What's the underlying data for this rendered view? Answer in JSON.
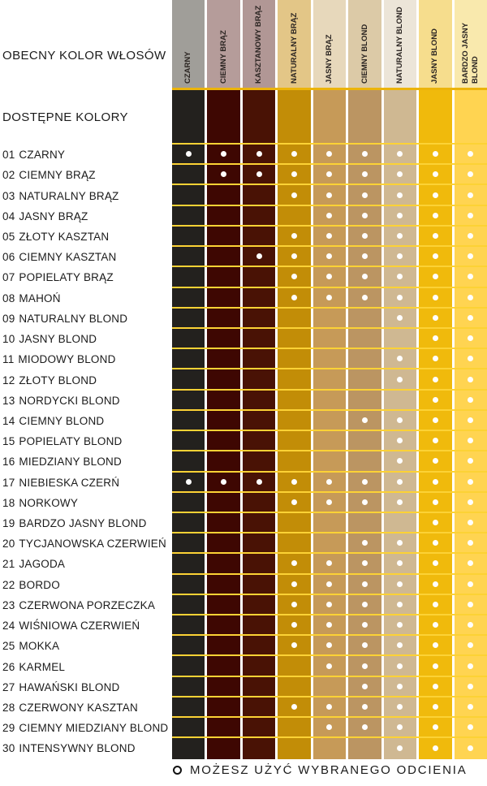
{
  "chart_data": {
    "type": "table",
    "title": "OBECNY KOLOR WŁOSÓW / DOSTĘPNE KOLORY",
    "left_header": "OBECNY KOLOR WŁOSÓW",
    "left_subheader": "DOSTĘPNE KOLORY",
    "legend_marker": "open-circle",
    "legend_text": "MOŻESZ UŻYĆ WYBRANEGO ODCIENIA",
    "columns": [
      {
        "label": "CZARNY",
        "header_color": "#a09e99",
        "cell_color": "#23211e"
      },
      {
        "label": "CIEMNY BRĄZ",
        "header_color": "#b59c9a",
        "cell_color": "#3e0702"
      },
      {
        "label": "KASZTANOWY BRĄZ",
        "header_color": "#b19795",
        "cell_color": "#491205"
      },
      {
        "label": "NATURALNY BRĄZ",
        "header_color": "#e3c687",
        "cell_color": "#c28d07"
      },
      {
        "label": "JASNY BRĄZ",
        "header_color": "#e7d8bb",
        "cell_color": "#c69a58"
      },
      {
        "label": "CIEMNY BLOND",
        "header_color": "#dccaa7",
        "cell_color": "#bb9562"
      },
      {
        "label": "NATURALNY BLOND",
        "header_color": "#ece5d8",
        "cell_color": "#cfb892"
      },
      {
        "label": "JASNY BLOND",
        "header_color": "#f6dd8d",
        "cell_color": "#f0ba0c"
      },
      {
        "label": "BARDZO JASNY BLOND",
        "header_color": "#f9e9ad",
        "cell_color": "#ffd451"
      }
    ],
    "rows": [
      {
        "num": "01",
        "name": "CZARNY",
        "available": [
          1,
          1,
          1,
          1,
          1,
          1,
          1,
          1,
          1
        ]
      },
      {
        "num": "02",
        "name": "CIEMNY BRĄZ",
        "available": [
          0,
          1,
          1,
          1,
          1,
          1,
          1,
          1,
          1
        ]
      },
      {
        "num": "03",
        "name": "NATURALNY BRĄZ",
        "available": [
          0,
          0,
          0,
          1,
          1,
          1,
          1,
          1,
          1
        ]
      },
      {
        "num": "04",
        "name": "JASNY BRĄZ",
        "available": [
          0,
          0,
          0,
          0,
          1,
          1,
          1,
          1,
          1
        ]
      },
      {
        "num": "05",
        "name": "ZŁOTY KASZTAN",
        "available": [
          0,
          0,
          0,
          1,
          1,
          1,
          1,
          1,
          1
        ]
      },
      {
        "num": "06",
        "name": "CIEMNY KASZTAN",
        "available": [
          0,
          0,
          1,
          1,
          1,
          1,
          1,
          1,
          1
        ]
      },
      {
        "num": "07",
        "name": "POPIELATY BRĄZ",
        "available": [
          0,
          0,
          0,
          1,
          1,
          1,
          1,
          1,
          1
        ]
      },
      {
        "num": "08",
        "name": "MAHOŃ",
        "available": [
          0,
          0,
          0,
          1,
          1,
          1,
          1,
          1,
          1
        ]
      },
      {
        "num": "09",
        "name": "NATURALNY BLOND",
        "available": [
          0,
          0,
          0,
          0,
          0,
          0,
          1,
          1,
          1
        ]
      },
      {
        "num": "10",
        "name": "JASNY BLOND",
        "available": [
          0,
          0,
          0,
          0,
          0,
          0,
          0,
          1,
          1
        ]
      },
      {
        "num": "11",
        "name": "MIODOWY BLOND",
        "available": [
          0,
          0,
          0,
          0,
          0,
          0,
          1,
          1,
          1
        ]
      },
      {
        "num": "12",
        "name": "ZŁOTY BLOND",
        "available": [
          0,
          0,
          0,
          0,
          0,
          0,
          1,
          1,
          1
        ]
      },
      {
        "num": "13",
        "name": "NORDYCKI BLOND",
        "available": [
          0,
          0,
          0,
          0,
          0,
          0,
          0,
          1,
          1
        ]
      },
      {
        "num": "14",
        "name": "CIEMNY BLOND",
        "available": [
          0,
          0,
          0,
          0,
          0,
          1,
          1,
          1,
          1
        ]
      },
      {
        "num": "15",
        "name": "POPIELATY BLOND",
        "available": [
          0,
          0,
          0,
          0,
          0,
          0,
          1,
          1,
          1
        ]
      },
      {
        "num": "16",
        "name": "MIEDZIANY BLOND",
        "available": [
          0,
          0,
          0,
          0,
          0,
          0,
          1,
          1,
          1
        ]
      },
      {
        "num": "17",
        "name": "NIEBIESKA CZERŃ",
        "available": [
          1,
          1,
          1,
          1,
          1,
          1,
          1,
          1,
          1
        ]
      },
      {
        "num": "18",
        "name": "NORKOWY",
        "available": [
          0,
          0,
          0,
          1,
          1,
          1,
          1,
          1,
          1
        ]
      },
      {
        "num": "19",
        "name": "BARDZO JASNY BLOND",
        "available": [
          0,
          0,
          0,
          0,
          0,
          0,
          0,
          1,
          1
        ]
      },
      {
        "num": "20",
        "name": "TYCJANOWSKA CZERWIEŃ",
        "available": [
          0,
          0,
          0,
          0,
          0,
          1,
          1,
          1,
          1
        ]
      },
      {
        "num": "21",
        "name": "JAGODA",
        "available": [
          0,
          0,
          0,
          1,
          1,
          1,
          1,
          1,
          1
        ]
      },
      {
        "num": "22",
        "name": "BORDO",
        "available": [
          0,
          0,
          0,
          1,
          1,
          1,
          1,
          1,
          1
        ]
      },
      {
        "num": "23",
        "name": "CZERWONA PORZECZKA",
        "available": [
          0,
          0,
          0,
          1,
          1,
          1,
          1,
          1,
          1
        ]
      },
      {
        "num": "24",
        "name": "WIŚNIOWA CZERWIEŃ",
        "available": [
          0,
          0,
          0,
          1,
          1,
          1,
          1,
          1,
          1
        ]
      },
      {
        "num": "25",
        "name": "MOKKA",
        "available": [
          0,
          0,
          0,
          1,
          1,
          1,
          1,
          1,
          1
        ]
      },
      {
        "num": "26",
        "name": "KARMEL",
        "available": [
          0,
          0,
          0,
          0,
          1,
          1,
          1,
          1,
          1
        ]
      },
      {
        "num": "27",
        "name": "HAWAŃSKI BLOND",
        "available": [
          0,
          0,
          0,
          0,
          0,
          1,
          1,
          1,
          1
        ]
      },
      {
        "num": "28",
        "name": "CZERWONY KASZTAN",
        "available": [
          0,
          0,
          0,
          1,
          1,
          1,
          1,
          1,
          1
        ]
      },
      {
        "num": "29",
        "name": "CIEMNY MIEDZIANY BLOND",
        "available": [
          0,
          0,
          0,
          0,
          1,
          1,
          1,
          1,
          1
        ]
      },
      {
        "num": "30",
        "name": "INTENSYWNY BLOND",
        "available": [
          0,
          0,
          0,
          0,
          0,
          0,
          1,
          1,
          1
        ]
      }
    ],
    "colors": {
      "background": "#ffffff",
      "row_separator": "#fcd235",
      "header_underline": "#ecb40a",
      "dot": "#ffffff",
      "text": "#1b1b1b",
      "header_text": "#2b2522"
    }
  }
}
